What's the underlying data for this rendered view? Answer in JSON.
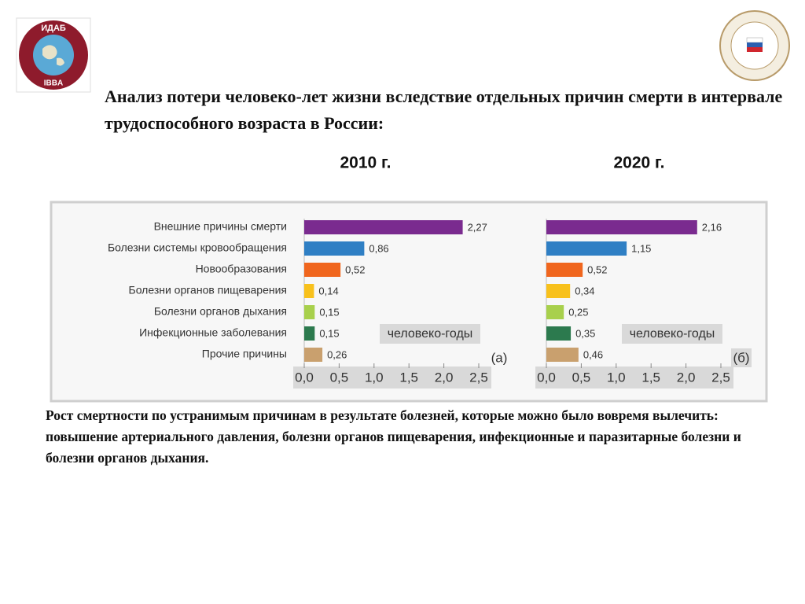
{
  "header": {
    "title": "Анализ потери человеко-лет жизни вследствие отдельных причин смерти в интервале трудоспособного возраста в России:"
  },
  "logos": {
    "left": [
      "ИДАБ",
      "IBBA"
    ]
  },
  "chart_data": [
    {
      "type": "bar",
      "orientation": "horizontal",
      "title": "2010 г.",
      "categories": [
        "Внешние причины смерти",
        "Болезни системы кровообращения",
        "Новообразования",
        "Болезни органов пищеварения",
        "Болезни органов дыхания",
        "Инфекционные заболевания",
        "Прочие причины"
      ],
      "values": [
        2.27,
        0.86,
        0.52,
        0.14,
        0.15,
        0.15,
        0.26
      ],
      "value_labels": [
        "2,27",
        "0,86",
        "0,52",
        "0,14",
        "0,15",
        "0,15",
        "0,26"
      ],
      "colors": [
        "#7a2b8f",
        "#2f7fc4",
        "#f0661e",
        "#f8c11c",
        "#a8d04c",
        "#2c7a4e",
        "#c9a06e"
      ],
      "xlim": [
        0,
        2.5
      ],
      "xticks": [
        {
          "value": 0,
          "label": "0,0"
        },
        {
          "value": 0.5,
          "label": "0,5"
        },
        {
          "value": 1,
          "label": "1,0"
        },
        {
          "value": 1.5,
          "label": "1,5"
        },
        {
          "value": 2,
          "label": "2,0"
        },
        {
          "value": 2.5,
          "label": "2,5"
        }
      ],
      "annotations": [
        "человеко-годы",
        "(а)"
      ]
    },
    {
      "type": "bar",
      "orientation": "horizontal",
      "title": "2020 г.",
      "categories": [
        null,
        null,
        null,
        null,
        null,
        null,
        null
      ],
      "values": [
        2.16,
        1.15,
        0.52,
        0.34,
        0.25,
        0.35,
        0.46
      ],
      "value_labels": [
        "2,16",
        "1,15",
        "0,52",
        "0,34",
        "0,25",
        "0,35",
        "0,46"
      ],
      "colors": [
        "#7a2b8f",
        "#2f7fc4",
        "#f0661e",
        "#f8c11c",
        "#a8d04c",
        "#2c7a4e",
        "#c9a06e"
      ],
      "xlim": [
        0,
        2.5
      ],
      "xticks": [
        {
          "value": 0,
          "label": "0,0"
        },
        {
          "value": 0.5,
          "label": "0,5"
        },
        {
          "value": 1,
          "label": "1,0"
        },
        {
          "value": 1.5,
          "label": "1,5"
        },
        {
          "value": 2,
          "label": "2,0"
        },
        {
          "value": 2.5,
          "label": "2,5"
        }
      ],
      "annotations": [
        "человеко-годы",
        "(б)"
      ]
    }
  ],
  "footer": {
    "paragraphs": [
      "Рост смертности  по устранимым причинам  в результате  болезней, которые можно было вовремя вылечить:",
      "повышение  артериального давления, болезни органов пищеварения, инфекционные и паразитарные болезни и болезни органов дыхания."
    ]
  }
}
